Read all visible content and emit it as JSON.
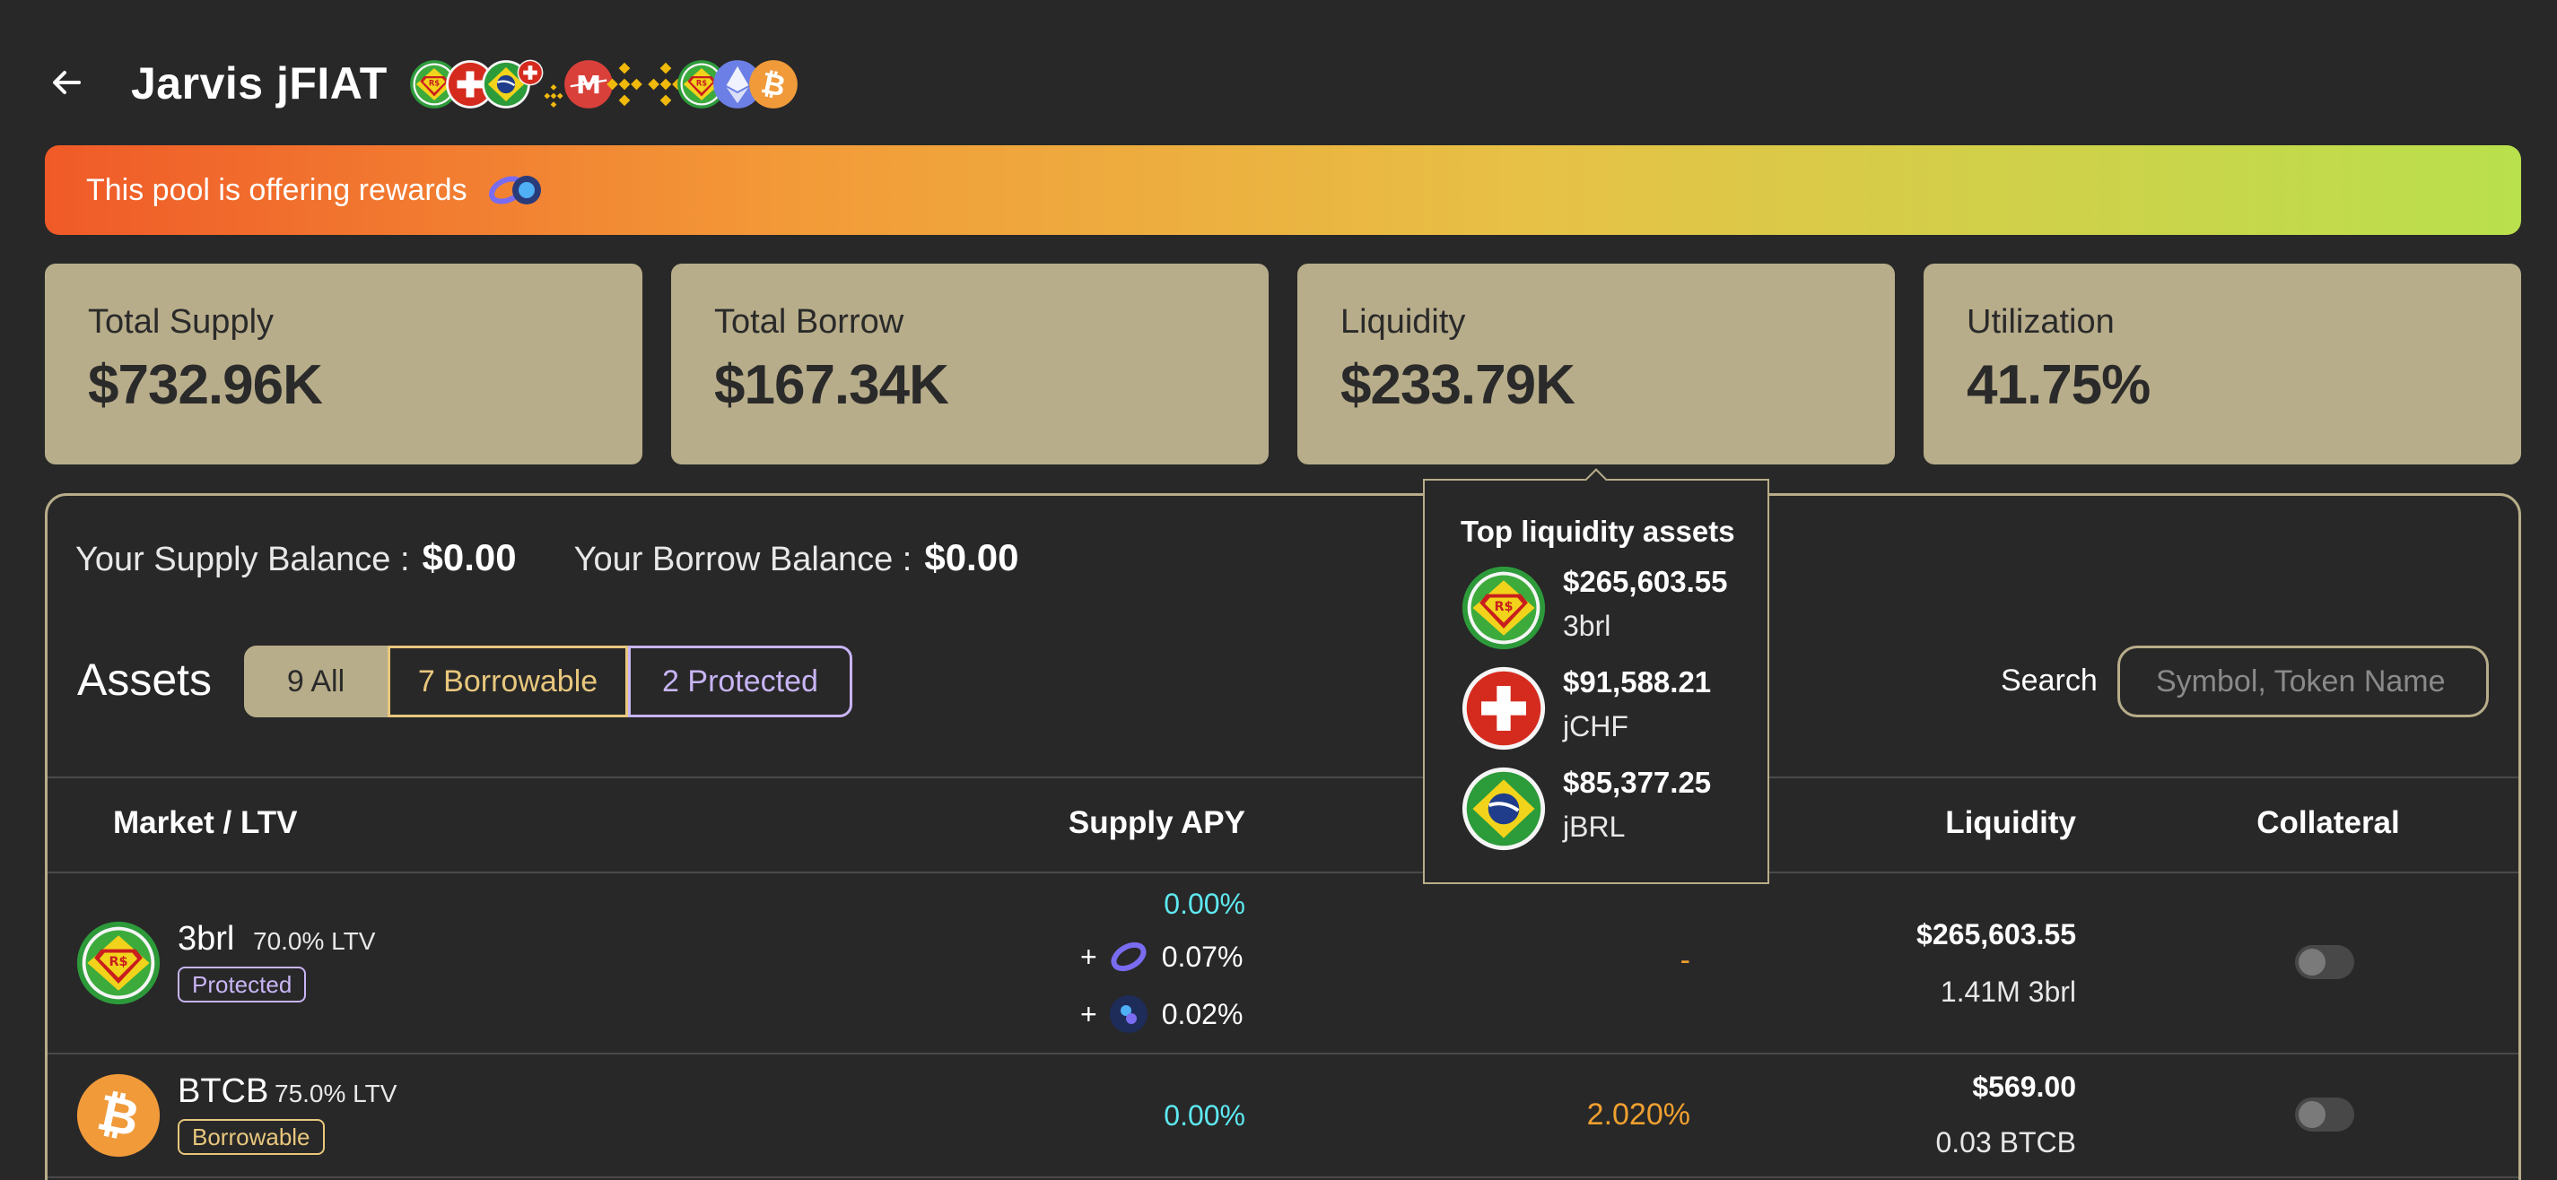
{
  "header": {
    "title": "Jarvis jFIAT",
    "asset_icons": [
      "3brl-icon",
      "jchf-icon",
      "jbrl-icon",
      "jchf-small-icon",
      "bnb-small-icon",
      "mimatic-icon",
      "bnb-icon",
      "bnb-alt-icon",
      "3brl-alt-icon",
      "eth-icon",
      "btcb-icon"
    ]
  },
  "rewards": {
    "text": "This pool is offering rewards",
    "colors": [
      "#f05a28",
      "#f39a38",
      "#e7c146",
      "#b9e04d"
    ]
  },
  "stats": [
    {
      "label": "Total Supply",
      "value": "$732.96K"
    },
    {
      "label": "Total Borrow",
      "value": "$167.34K"
    },
    {
      "label": "Liquidity",
      "value": "$233.79K"
    },
    {
      "label": "Utilization",
      "value": "41.75%"
    }
  ],
  "balances": {
    "supply_label": "Your Supply Balance :",
    "supply_value": "$0.00",
    "borrow_label": "Your Borrow Balance :",
    "borrow_value": "$0.00"
  },
  "assets": {
    "title": "Assets",
    "filters": {
      "all": "9 All",
      "borrowable": "7 Borrowable",
      "protected": "2 Protected"
    },
    "search_label": "Search",
    "search_placeholder": "Symbol, Token Name"
  },
  "table": {
    "headers": {
      "market": "Market / LTV",
      "supply_apy": "Supply APY",
      "liquidity": "Liquidity",
      "collateral": "Collateral"
    },
    "rows": [
      {
        "symbol": "3brl",
        "ltv": "70.0% LTV",
        "badge": "Protected",
        "supply_apy": "0.00%",
        "rewards": [
          {
            "plus": "+",
            "icon": "rewards-ring-icon",
            "apy": "0.07%"
          },
          {
            "plus": "+",
            "icon": "rewards-token-icon",
            "apy": "0.02%"
          }
        ],
        "borrow_apy": "-",
        "liquidity_usd": "$265,603.55",
        "liquidity_amount": "1.41M 3brl",
        "collateral": false
      },
      {
        "symbol": "BTCB",
        "ltv": "75.0% LTV",
        "badge": "Borrowable",
        "supply_apy": "0.00%",
        "borrow_apy": "2.020%",
        "liquidity_usd": "$569.00",
        "liquidity_amount": "0.03 BTCB",
        "collateral": false
      }
    ]
  },
  "tooltip": {
    "title": "Top liquidity assets",
    "items": [
      {
        "usd": "$265,603.55",
        "symbol": "3brl",
        "icon": "3brl-icon"
      },
      {
        "usd": "$91,588.21",
        "symbol": "jCHF",
        "icon": "jchf-icon"
      },
      {
        "usd": "$85,377.25",
        "symbol": "jBRL",
        "icon": "jbrl-icon"
      }
    ]
  },
  "colors": {
    "background": "#282828",
    "card": "#b8ad8a",
    "apy_cyan": "#5ee8f0",
    "borrow_orange": "#f0a030",
    "protected": "#c8b5f5",
    "borrowable": "#e8c77d"
  }
}
